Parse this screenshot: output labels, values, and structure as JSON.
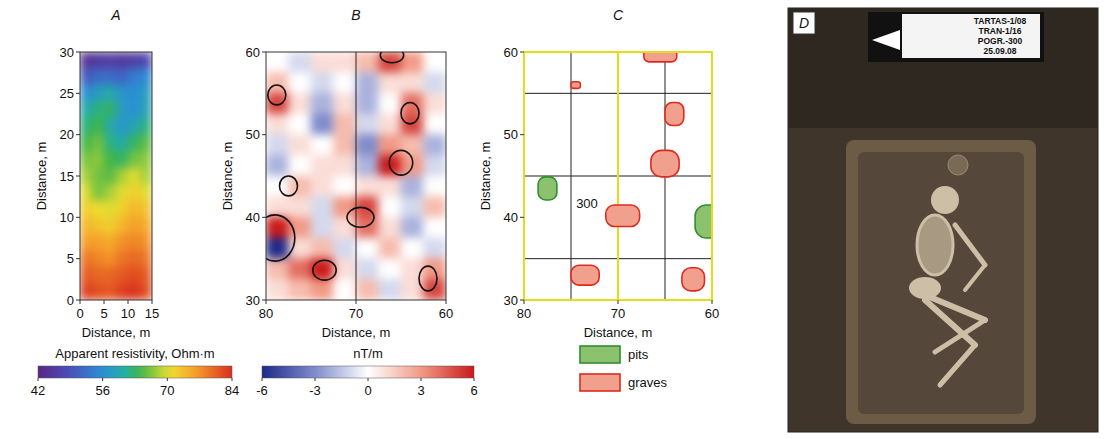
{
  "chart_data": [
    {
      "type": "heatmap",
      "label": "A",
      "x_label": "Distance, m",
      "y_label": "Distance, m",
      "xlim": [
        0,
        15
      ],
      "ylim": [
        0,
        30
      ],
      "xticks": [
        0,
        5,
        10,
        15
      ],
      "yticks": [
        0,
        5,
        10,
        15,
        20,
        25,
        30
      ],
      "x": [
        1.25,
        3.75,
        6.25,
        8.75,
        11.25,
        13.75
      ],
      "y": [
        29,
        27,
        25,
        23,
        21,
        19,
        17,
        15,
        13,
        11,
        9,
        7,
        5,
        3,
        1
      ],
      "cells": [
        [
          44,
          45,
          46,
          45,
          46,
          47
        ],
        [
          50,
          52,
          52,
          51,
          54,
          55
        ],
        [
          56,
          58,
          60,
          57,
          56,
          58
        ],
        [
          60,
          62,
          63,
          58,
          56,
          59
        ],
        [
          62,
          64,
          60,
          57,
          59,
          62
        ],
        [
          64,
          66,
          62,
          60,
          63,
          65
        ],
        [
          66,
          67,
          64,
          63,
          66,
          67
        ],
        [
          68,
          66,
          65,
          68,
          70,
          68
        ],
        [
          70,
          66,
          68,
          70,
          72,
          70
        ],
        [
          72,
          71,
          70,
          72,
          74,
          73
        ],
        [
          74,
          73,
          72,
          74,
          76,
          75
        ],
        [
          76,
          76,
          75,
          77,
          78,
          77
        ],
        [
          79,
          78,
          77,
          79,
          80,
          79
        ],
        [
          81,
          80,
          80,
          81,
          82,
          81
        ],
        [
          83,
          82,
          81,
          83,
          84,
          82
        ]
      ],
      "colorbar": {
        "label": "Apparent resistivity, Ohm·m",
        "range": [
          42,
          84
        ],
        "ticks": [
          42,
          56,
          70,
          84
        ]
      }
    },
    {
      "type": "heatmap",
      "label": "B",
      "x_label": "Distance, m",
      "y_label": "Distance, m",
      "xlim": [
        80,
        60
      ],
      "ylim": [
        30,
        60
      ],
      "xticks": [
        80,
        70,
        60
      ],
      "yticks": [
        30,
        40,
        50,
        60
      ],
      "grid": true,
      "x": [
        78.75,
        76.25,
        73.75,
        71.25,
        68.75,
        66.25,
        63.75,
        61.25
      ],
      "y": [
        58.75,
        56.25,
        53.75,
        51.25,
        48.75,
        46.25,
        43.75,
        41.25,
        38.75,
        36.25,
        33.75,
        31.25
      ],
      "cells": [
        [
          0,
          -1,
          1,
          1,
          2,
          5,
          3,
          0
        ],
        [
          2,
          0,
          -1,
          0,
          -2,
          1,
          1,
          -1
        ],
        [
          5,
          1,
          -2,
          1,
          -2,
          0,
          4,
          1
        ],
        [
          1,
          0,
          -3,
          2,
          -1,
          1,
          5,
          0
        ],
        [
          -1,
          1,
          0,
          2,
          -3,
          3,
          2,
          -2
        ],
        [
          -2,
          0,
          1,
          1,
          -2,
          6,
          3,
          -1
        ],
        [
          0,
          2,
          1,
          0,
          1,
          1,
          -2,
          0
        ],
        [
          1,
          1,
          -1,
          3,
          5,
          0,
          -1,
          2
        ],
        [
          6,
          3,
          -1,
          1,
          4,
          1,
          -2,
          0
        ],
        [
          -6,
          1,
          2,
          -1,
          0,
          2,
          0,
          -1
        ],
        [
          2,
          4,
          6,
          1,
          -1,
          0,
          1,
          3
        ],
        [
          1,
          2,
          3,
          0,
          2,
          -1,
          1,
          5
        ]
      ],
      "anomalies": {
        "x": [
          78.8,
          64,
          65,
          69.5,
          73.5,
          62,
          66,
          77.5,
          79
        ],
        "y": [
          54.8,
          52.6,
          46.6,
          40,
          33.6,
          32.6,
          59.6,
          43.8,
          37.5
        ],
        "rx": [
          1,
          1,
          1.3,
          1.5,
          1.3,
          1,
          1.3,
          1,
          2.2
        ],
        "ry": [
          1.2,
          1.3,
          1.5,
          1.2,
          1.2,
          1.5,
          0.9,
          1.2,
          2.8
        ]
      },
      "colorbar": {
        "label": "nT/m",
        "range": [
          -6,
          6
        ],
        "ticks": [
          -6,
          -3,
          0,
          3,
          6
        ]
      }
    },
    {
      "type": "map",
      "label": "C",
      "x_label": "Distance, m",
      "y_label": "Distance, m",
      "xlim": [
        80,
        60
      ],
      "ylim": [
        30,
        60
      ],
      "xticks": [
        80,
        70,
        60
      ],
      "yticks": [
        30,
        40,
        50,
        60
      ],
      "grid": true,
      "series": [
        {
          "name": "pits",
          "color": "#8cc26e",
          "x": [
            77.5,
            60.3
          ],
          "y": [
            43.5,
            39.5
          ],
          "width": [
            2,
            3
          ],
          "height": [
            2.8,
            4
          ]
        },
        {
          "name": "graves",
          "color": "#f2a08e",
          "x": [
            74.5,
            65.5,
            64,
            65,
            69.5,
            73.5,
            62
          ],
          "y": [
            56,
            59.6,
            52.5,
            46.5,
            40.2,
            33,
            32.5
          ],
          "width": [
            1,
            3.5,
            2,
            3,
            3.6,
            3,
            2.4
          ],
          "height": [
            0.8,
            1.6,
            2.8,
            3.2,
            2.6,
            2.4,
            2.8
          ]
        }
      ],
      "annotations": [
        {
          "text": "300",
          "x": 73.3,
          "y": 41.6
        }
      ]
    }
  ],
  "photo": {
    "label": "D",
    "sign": [
      "TARTAS-1/08",
      "TRAN-1/16",
      "POGR.-300",
      "25.09.08"
    ]
  }
}
